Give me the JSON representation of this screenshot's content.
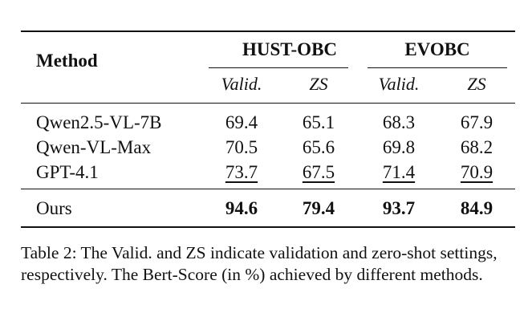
{
  "table": {
    "method_header": "Method",
    "groups": [
      "HUST-OBC",
      "EVOBC"
    ],
    "subheaders": [
      "Valid.",
      "ZS",
      "Valid.",
      "ZS"
    ],
    "rows": [
      {
        "method": "Qwen2.5-VL-7B",
        "values": [
          "69.4",
          "65.1",
          "68.3",
          "67.9"
        ]
      },
      {
        "method": "Qwen-VL-Max",
        "values": [
          "70.5",
          "65.6",
          "69.8",
          "68.2"
        ]
      },
      {
        "method": "GPT-4.1",
        "values": [
          "73.7",
          "67.5",
          "71.4",
          "70.9"
        ]
      },
      {
        "method": "Ours",
        "values": [
          "94.6",
          "79.4",
          "93.7",
          "84.9"
        ]
      }
    ]
  },
  "caption": "Table 2: The Valid. and ZS indicate validation and zero-shot settings, respectively. The Bert-Score (in %) achieved by different methods."
}
